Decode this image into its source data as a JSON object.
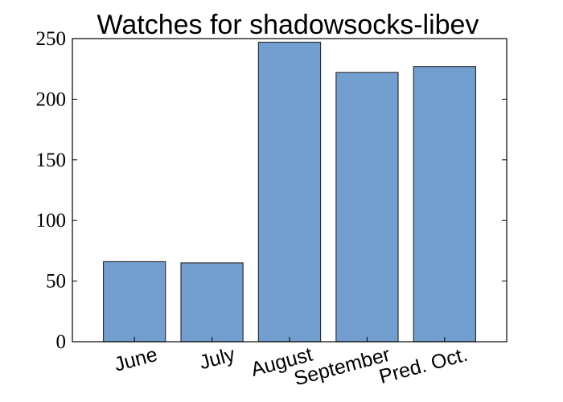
{
  "chart_data": {
    "type": "bar",
    "title": "Watches for shadowsocks-libev",
    "xlabel": "",
    "ylabel": "",
    "categories": [
      "June",
      "July",
      "August",
      "September",
      "Pred. Oct."
    ],
    "values": [
      66,
      65,
      247,
      222,
      227
    ],
    "ylim": [
      0,
      250
    ],
    "yticks": [
      "0",
      "50",
      "100",
      "150",
      "200",
      "250"
    ],
    "grid": false,
    "legend": "none",
    "bar_color": "#729fcf",
    "bar_edge_color": "#2e3436"
  }
}
